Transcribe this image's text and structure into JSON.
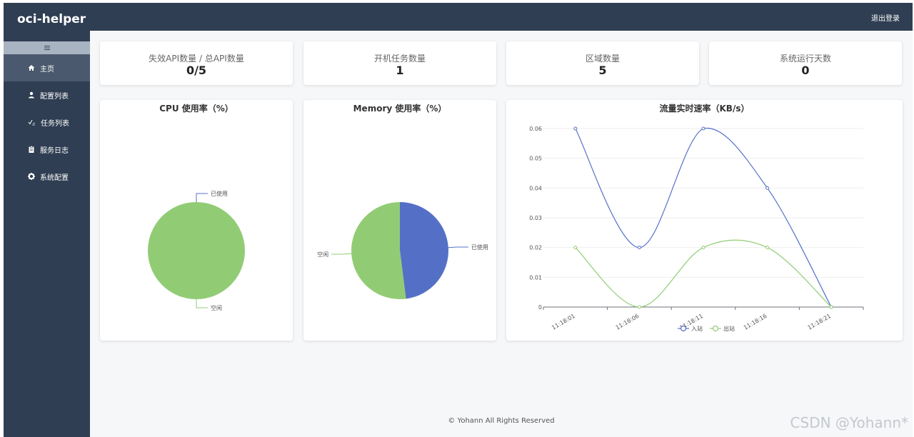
{
  "brand": "oci-helper",
  "header": {
    "logout_label": "退出登录"
  },
  "sidebar": {
    "toggle_icon": "menu-icon",
    "items": [
      {
        "label": "主页",
        "icon": "home-icon",
        "active": true
      },
      {
        "label": "配置列表",
        "icon": "user-icon",
        "active": false
      },
      {
        "label": "任务列表",
        "icon": "tasks-icon",
        "active": false
      },
      {
        "label": "服务日志",
        "icon": "clipboard-icon",
        "active": false
      },
      {
        "label": "系统配置",
        "icon": "gear-icon",
        "active": false
      }
    ]
  },
  "stats": [
    {
      "label": "失效API数量 / 总API数量",
      "value": "0/5"
    },
    {
      "label": "开机任务数量",
      "value": "1"
    },
    {
      "label": "区域数量",
      "value": "5"
    },
    {
      "label": "系统运行天数",
      "value": "0"
    }
  ],
  "chart_data": [
    {
      "type": "pie",
      "title": "CPU 使用率（%）",
      "labels": [
        "已使用",
        "空闲"
      ],
      "values": [
        0,
        100
      ],
      "colors": [
        "#5470c6",
        "#91cc75"
      ]
    },
    {
      "type": "pie",
      "title": "Memory 使用率（%）",
      "labels": [
        "已使用",
        "空闲"
      ],
      "values": [
        48,
        52
      ],
      "colors": [
        "#5470c6",
        "#91cc75"
      ]
    },
    {
      "type": "line",
      "title": "流量实时速率（KB/s）",
      "categories": [
        "11:18:01",
        "11:18:06",
        "11:18:11",
        "11:18:16",
        "11:18:21"
      ],
      "series": [
        {
          "name": "入站",
          "color": "#5470c6",
          "values": [
            0.06,
            0.02,
            0.06,
            0.04,
            0
          ]
        },
        {
          "name": "出站",
          "color": "#91cc75",
          "values": [
            0.02,
            0,
            0.02,
            0.02,
            0
          ]
        }
      ],
      "yticks": [
        "0",
        "0.01",
        "0.02",
        "0.03",
        "0.04",
        "0.05",
        "0.06"
      ],
      "ylim": [
        0,
        0.06
      ],
      "legend": "bottom",
      "smooth": true,
      "grid": true
    }
  ],
  "footer": "© Yohann All Rights Reserved",
  "watermark": "CSDN @Yohann*"
}
